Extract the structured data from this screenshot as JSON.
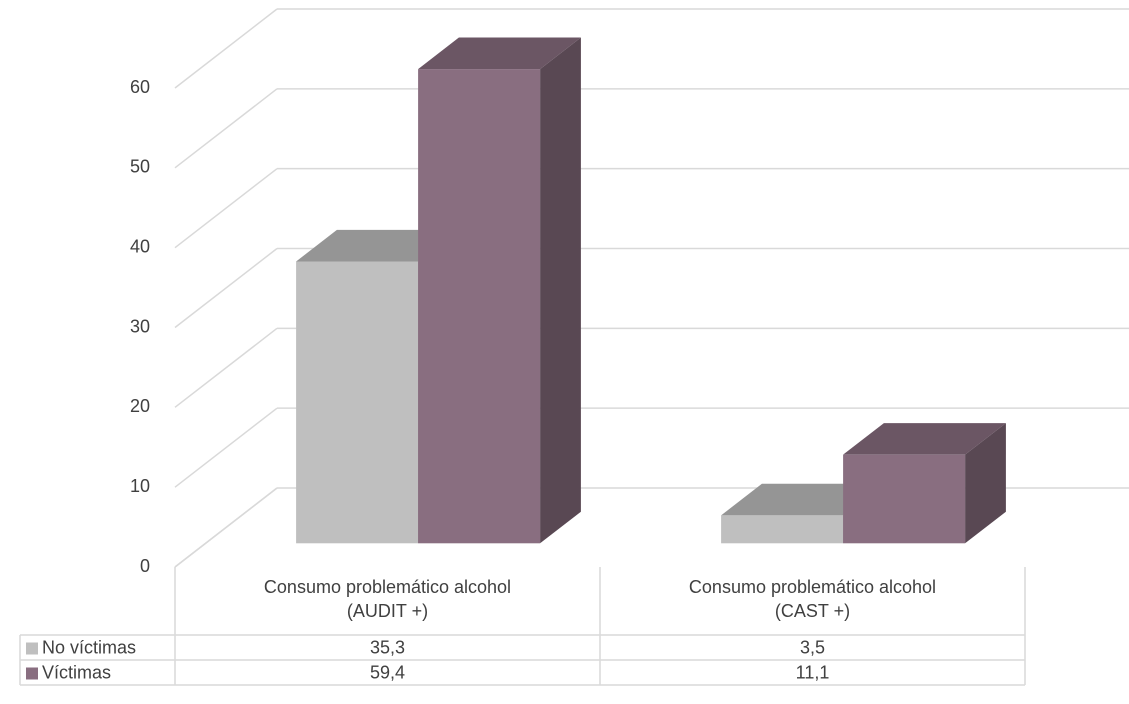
{
  "chart_data": {
    "type": "bar3d",
    "categories": [
      "Consumo problemático alcohol (AUDIT +)",
      "Consumo problemático alcohol (CAST +)"
    ],
    "series": [
      {
        "name": "No víctimas",
        "color": "#bfbfbf",
        "values": [
          35.3,
          3.5
        ],
        "value_labels": [
          "35,3",
          "3,5"
        ]
      },
      {
        "name": "Víctimas",
        "color": "#896e80",
        "values": [
          59.4,
          11.1
        ],
        "value_labels": [
          "59,4",
          "11,1"
        ]
      }
    ],
    "ylim": [
      0,
      60
    ],
    "yticks": [
      0,
      10,
      20,
      30,
      40,
      50,
      60
    ],
    "grid": true,
    "legend": "table"
  }
}
